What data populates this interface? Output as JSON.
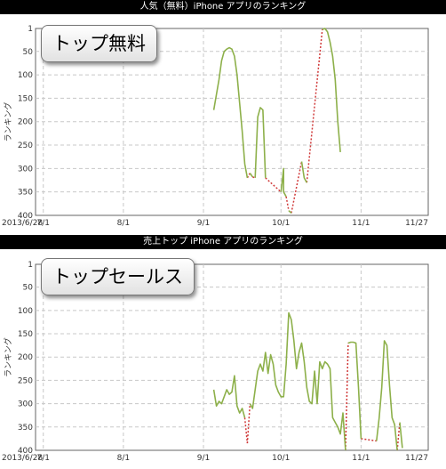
{
  "chart_data": [
    {
      "type": "line",
      "title": "人気（無料）iPhone アプリのランキング",
      "badge": "トップ無料",
      "ylabel": "ランキング",
      "xlabel": "",
      "x_range": [
        "2013/6/28",
        "2013/11/27"
      ],
      "ylim": [
        400,
        1
      ],
      "y_inverted": true,
      "grid": true,
      "x_ticks": [
        {
          "date": "2013/6/28",
          "label": "2013/6/28"
        },
        {
          "date": "2013/7/1",
          "label": "7/1"
        },
        {
          "date": "2013/8/1",
          "label": "8/1"
        },
        {
          "date": "2013/9/1",
          "label": "9/1"
        },
        {
          "date": "2013/10/1",
          "label": "10/1"
        },
        {
          "date": "2013/11/1",
          "label": "11/1"
        },
        {
          "date": "2013/11/27",
          "label": "11/27"
        }
      ],
      "y_ticks": [
        1,
        50,
        100,
        150,
        200,
        250,
        300,
        350,
        400
      ],
      "series_color": "#8db04a",
      "gap_color": "#d03a3a",
      "segments": [
        [
          [
            "2013/9/5",
            175
          ],
          [
            "2013/9/7",
            110
          ],
          [
            "2013/9/8",
            70
          ],
          [
            "2013/9/9",
            50
          ],
          [
            "2013/9/10",
            45
          ],
          [
            "2013/9/11",
            42
          ],
          [
            "2013/9/12",
            45
          ],
          [
            "2013/9/13",
            60
          ],
          [
            "2013/9/14",
            100
          ],
          [
            "2013/9/15",
            160
          ],
          [
            "2013/9/16",
            220
          ],
          [
            "2013/9/17",
            290
          ],
          [
            "2013/9/18",
            320
          ]
        ],
        [
          [
            "2013/9/19",
            310
          ],
          [
            "2013/9/20",
            318
          ]
        ],
        [
          [
            "2013/9/21",
            320
          ],
          [
            "2013/9/22",
            190
          ],
          [
            "2013/9/23",
            170
          ],
          [
            "2013/9/24",
            175
          ],
          [
            "2013/9/25",
            320
          ]
        ],
        [
          [
            "2013/10/1",
            350
          ],
          [
            "2013/10/2",
            300
          ],
          [
            "2013/10/2",
            350
          ],
          [
            "2013/10/3",
            360
          ]
        ],
        [
          [
            "2013/10/4",
            390
          ],
          [
            "2013/10/5",
            395
          ]
        ],
        [
          [
            "2013/10/9",
            285
          ],
          [
            "2013/10/10",
            320
          ],
          [
            "2013/10/11",
            330
          ]
        ],
        [
          [
            "2013/10/17",
            3
          ],
          [
            "2013/10/18",
            1
          ],
          [
            "2013/10/19",
            8
          ],
          [
            "2013/10/20",
            30
          ],
          [
            "2013/10/21",
            60
          ],
          [
            "2013/10/22",
            110
          ],
          [
            "2013/10/23",
            200
          ],
          [
            "2013/10/24",
            265
          ]
        ]
      ],
      "gaps": [
        [
          [
            "2013/9/18",
            320
          ],
          [
            "2013/9/19",
            310
          ]
        ],
        [
          [
            "2013/9/20",
            318
          ],
          [
            "2013/9/21",
            320
          ]
        ],
        [
          [
            "2013/9/25",
            320
          ],
          [
            "2013/10/1",
            350
          ]
        ],
        [
          [
            "2013/10/3",
            360
          ],
          [
            "2013/10/4",
            390
          ]
        ],
        [
          [
            "2013/10/5",
            395
          ],
          [
            "2013/10/9",
            285
          ]
        ],
        [
          [
            "2013/10/11",
            330
          ],
          [
            "2013/10/17",
            3
          ]
        ]
      ]
    },
    {
      "type": "line",
      "title": "売上トップ iPhone アプリのランキング",
      "badge": "トップセールス",
      "ylabel": "ランキング",
      "xlabel": "",
      "x_range": [
        "2013/6/28",
        "2013/11/27"
      ],
      "ylim": [
        400,
        1
      ],
      "y_inverted": true,
      "grid": true,
      "x_ticks": [
        {
          "date": "2013/6/28",
          "label": "2013/6/28"
        },
        {
          "date": "2013/7/1",
          "label": "7/1"
        },
        {
          "date": "2013/8/1",
          "label": "8/1"
        },
        {
          "date": "2013/9/1",
          "label": "9/1"
        },
        {
          "date": "2013/10/1",
          "label": "10/1"
        },
        {
          "date": "2013/11/1",
          "label": "11/1"
        },
        {
          "date": "2013/11/27",
          "label": "11/27"
        }
      ],
      "y_ticks": [
        1,
        50,
        100,
        150,
        200,
        250,
        300,
        350,
        400
      ],
      "series_color": "#8db04a",
      "gap_color": "#d03a3a",
      "segments": [
        [
          [
            "2013/9/5",
            270
          ],
          [
            "2013/9/6",
            305
          ],
          [
            "2013/9/7",
            295
          ],
          [
            "2013/9/8",
            300
          ],
          [
            "2013/9/9",
            285
          ],
          [
            "2013/9/10",
            270
          ],
          [
            "2013/9/11",
            280
          ],
          [
            "2013/9/12",
            275
          ],
          [
            "2013/9/13",
            240
          ],
          [
            "2013/9/14",
            305
          ],
          [
            "2013/9/15",
            320
          ],
          [
            "2013/9/16",
            310
          ],
          [
            "2013/9/17",
            330
          ]
        ],
        [
          [
            "2013/9/19",
            300
          ],
          [
            "2013/9/20",
            310
          ],
          [
            "2013/9/21",
            270
          ],
          [
            "2013/9/22",
            230
          ],
          [
            "2013/9/23",
            215
          ],
          [
            "2013/9/24",
            230
          ],
          [
            "2013/9/25",
            190
          ],
          [
            "2013/9/26",
            235
          ],
          [
            "2013/9/27",
            195
          ],
          [
            "2013/9/28",
            215
          ],
          [
            "2013/9/29",
            260
          ],
          [
            "2013/9/30",
            275
          ],
          [
            "2013/10/1",
            285
          ],
          [
            "2013/10/2",
            285
          ],
          [
            "2013/10/3",
            215
          ],
          [
            "2013/10/4",
            105
          ],
          [
            "2013/10/5",
            120
          ],
          [
            "2013/10/6",
            165
          ],
          [
            "2013/10/7",
            225
          ],
          [
            "2013/10/8",
            190
          ],
          [
            "2013/10/9",
            170
          ],
          [
            "2013/10/10",
            210
          ],
          [
            "2013/10/11",
            265
          ],
          [
            "2013/10/12",
            295
          ],
          [
            "2013/10/13",
            300
          ],
          [
            "2013/10/14",
            230
          ],
          [
            "2013/10/15",
            300
          ],
          [
            "2013/10/16",
            210
          ],
          [
            "2013/10/17",
            225
          ],
          [
            "2013/10/18",
            210
          ],
          [
            "2013/10/19",
            215
          ],
          [
            "2013/10/20",
            225
          ],
          [
            "2013/10/21",
            330
          ],
          [
            "2013/10/22",
            340
          ],
          [
            "2013/10/23",
            350
          ],
          [
            "2013/10/24",
            365
          ],
          [
            "2013/10/25",
            320
          ],
          [
            "2013/10/26",
            400
          ]
        ],
        [
          [
            "2013/10/27",
            170
          ],
          [
            "2013/10/28",
            168
          ],
          [
            "2013/10/29",
            168
          ],
          [
            "2013/10/30",
            170
          ],
          [
            "2013/10/31",
            265
          ],
          [
            "2013/11/1",
            375
          ]
        ],
        [
          [
            "2013/11/7",
            380
          ],
          [
            "2013/11/8",
            330
          ],
          [
            "2013/11/9",
            265
          ],
          [
            "2013/11/10",
            165
          ],
          [
            "2013/11/11",
            175
          ],
          [
            "2013/11/12",
            260
          ],
          [
            "2013/11/13",
            330
          ],
          [
            "2013/11/14",
            345
          ],
          [
            "2013/11/15",
            400
          ]
        ],
        [
          [
            "2013/11/16",
            340
          ],
          [
            "2013/11/17",
            395
          ]
        ]
      ],
      "gaps": [
        [
          [
            "2013/9/17",
            330
          ],
          [
            "2013/9/18",
            385
          ]
        ],
        [
          [
            "2013/9/18",
            385
          ],
          [
            "2013/9/19",
            300
          ]
        ],
        [
          [
            "2013/10/26",
            400
          ],
          [
            "2013/10/27",
            170
          ]
        ],
        [
          [
            "2013/11/1",
            375
          ],
          [
            "2013/11/7",
            380
          ]
        ],
        [
          [
            "2013/11/15",
            400
          ],
          [
            "2013/11/16",
            340
          ]
        ]
      ]
    }
  ]
}
